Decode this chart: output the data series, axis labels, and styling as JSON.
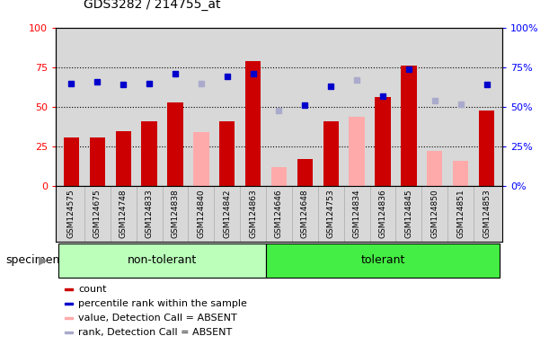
{
  "title": "GDS3282 / 214755_at",
  "specimens": [
    "GSM124575",
    "GSM124675",
    "GSM124748",
    "GSM124833",
    "GSM124838",
    "GSM124840",
    "GSM124842",
    "GSM124863",
    "GSM124646",
    "GSM124648",
    "GSM124753",
    "GSM124834",
    "GSM124836",
    "GSM124845",
    "GSM124850",
    "GSM124851",
    "GSM124853"
  ],
  "groups": [
    {
      "label": "non-tolerant",
      "color": "#bbffbb",
      "start": 0,
      "end": 8
    },
    {
      "label": "tolerant",
      "color": "#44ee44",
      "start": 8,
      "end": 17
    }
  ],
  "count_values": [
    31,
    31,
    35,
    41,
    53,
    null,
    41,
    79,
    null,
    17,
    41,
    null,
    56,
    76,
    null,
    null,
    48
  ],
  "absent_value_values": [
    null,
    null,
    null,
    null,
    null,
    34,
    null,
    null,
    12,
    null,
    null,
    44,
    null,
    null,
    22,
    16,
    null
  ],
  "percentile_rank_values": [
    65,
    66,
    64,
    65,
    71,
    null,
    69,
    71,
    null,
    51,
    63,
    null,
    57,
    74,
    null,
    null,
    64
  ],
  "absent_rank_values": [
    null,
    null,
    null,
    null,
    null,
    65,
    null,
    null,
    48,
    null,
    null,
    67,
    null,
    null,
    54,
    52,
    null
  ],
  "bar_color_red": "#cc0000",
  "bar_color_pink": "#ffaaaa",
  "dot_color_blue": "#0000cc",
  "dot_color_lightblue": "#aaaacc",
  "ylim_left": [
    0,
    100
  ],
  "ylim_right": [
    0,
    100
  ],
  "yticks": [
    0,
    25,
    50,
    75,
    100
  ],
  "plot_bg": "#d8d8d8",
  "legend_items": [
    {
      "label": "count",
      "color": "#cc0000"
    },
    {
      "label": "percentile rank within the sample",
      "color": "#0000cc"
    },
    {
      "label": "value, Detection Call = ABSENT",
      "color": "#ffaaaa"
    },
    {
      "label": "rank, Detection Call = ABSENT",
      "color": "#aaaacc"
    }
  ]
}
